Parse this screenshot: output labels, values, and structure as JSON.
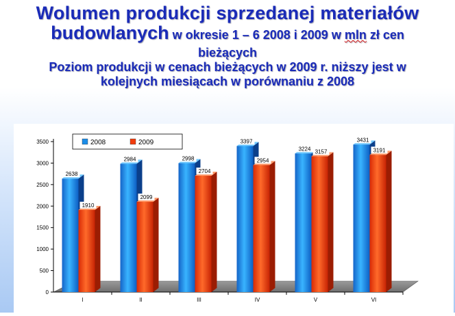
{
  "title": {
    "line1": "Wolumen produkcji sprzedanej materiałów",
    "line2_big": "budowlanych",
    "line2_small_a": " w okresie 1 – 6  2008 i 2009 w ",
    "line2_mln": "mln",
    "line2_small_b": " zł cen",
    "line3": "bieżących",
    "line4": "Poziom produkcji w cenach bieżących  w 2009 r. niższy jest  w",
    "line5": "kolejnych miesiącach w porównaniu z 2008"
  },
  "chart_data": {
    "type": "bar",
    "categories": [
      "I",
      "II",
      "III",
      "IV",
      "V",
      "VI"
    ],
    "series": [
      {
        "name": "2008",
        "values": [
          2638,
          2984,
          2998,
          3397,
          3224,
          3431
        ],
        "color": "#1b8de8"
      },
      {
        "name": "2009",
        "values": [
          1910,
          2099,
          2704,
          2954,
          3157,
          3191
        ],
        "color": "#f23c0c"
      }
    ],
    "value_labels": [
      [
        "2638",
        "2984",
        "2998",
        "3397",
        "3224",
        "3431"
      ],
      [
        "1910",
        "2099",
        "2704",
        "2954",
        "3157",
        "3191"
      ]
    ],
    "yticks": [
      0,
      500,
      1000,
      1500,
      2000,
      2500,
      3000,
      3500
    ],
    "ylim": [
      0,
      3500
    ],
    "legend_position": "top-left",
    "grid": false,
    "three_d": true
  }
}
